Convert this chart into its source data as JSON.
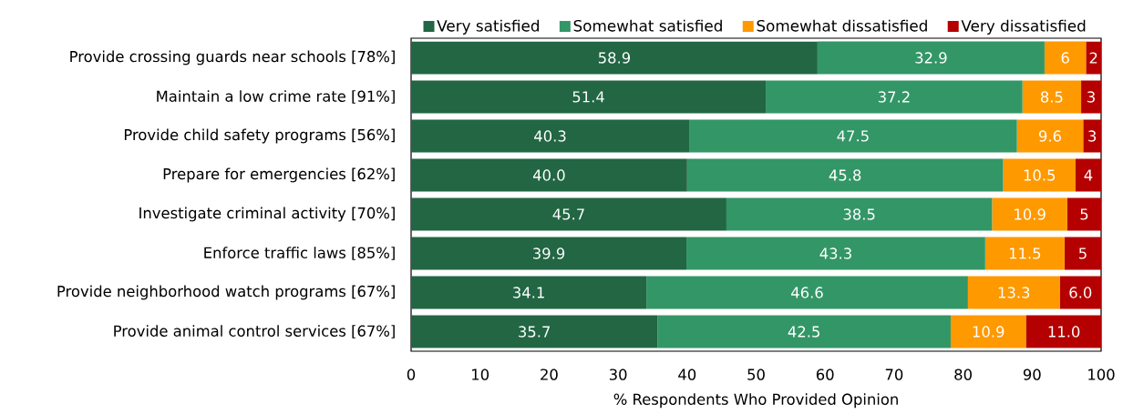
{
  "chart_data": {
    "type": "bar",
    "orientation": "horizontal",
    "stacked": true,
    "xlabel": "% Respondents Who Provided Opinion",
    "legend": "top",
    "categories": [
      "Provide crossing guards near schools [78%]",
      "Maintain a low crime rate [91%]",
      "Provide child safety programs [56%]",
      "Prepare for emergencies [62%]",
      "Investigate criminal activity [70%]",
      "Enforce traffic laws [85%]",
      "Provide neighborhood watch programs [67%]",
      "Provide animal control services [67%]"
    ],
    "series": [
      {
        "name": "Very satisfied",
        "color": "#226644",
        "values": [
          58.9,
          51.4,
          40.3,
          40.0,
          45.7,
          39.9,
          34.1,
          35.7
        ],
        "value_labels": [
          "58.9",
          "51.4",
          "40.3",
          "40.0",
          "45.7",
          "39.9",
          "34.1",
          "35.7"
        ]
      },
      {
        "name": "Somewhat satisfied",
        "color": "#339666",
        "values": [
          32.9,
          37.2,
          47.5,
          45.8,
          38.5,
          43.3,
          46.6,
          42.5
        ],
        "value_labels": [
          "32.9",
          "37.2",
          "47.5",
          "45.8",
          "38.5",
          "43.3",
          "46.6",
          "42.5"
        ]
      },
      {
        "name": "Somewhat dissatisfied",
        "color": "#ff9900",
        "values": [
          6,
          8.5,
          9.6,
          10.5,
          10.9,
          11.5,
          13.3,
          10.9
        ],
        "value_labels": [
          "6",
          "8.5",
          "9.6",
          "10.5",
          "10.9",
          "11.5",
          "13.3",
          "10.9"
        ]
      },
      {
        "name": "Very dissatisfied",
        "color": "#b40000",
        "values": [
          2.2,
          2.9,
          2.6,
          3.7,
          4.9,
          5.3,
          6.0,
          11.0
        ],
        "value_labels": [
          "2",
          "3",
          "3",
          "4",
          "5",
          "5",
          "6.0",
          "11.0"
        ]
      }
    ],
    "xlim": [
      0,
      100
    ],
    "xticks": [
      0,
      10,
      20,
      30,
      40,
      50,
      60,
      70,
      80,
      90,
      100
    ]
  }
}
